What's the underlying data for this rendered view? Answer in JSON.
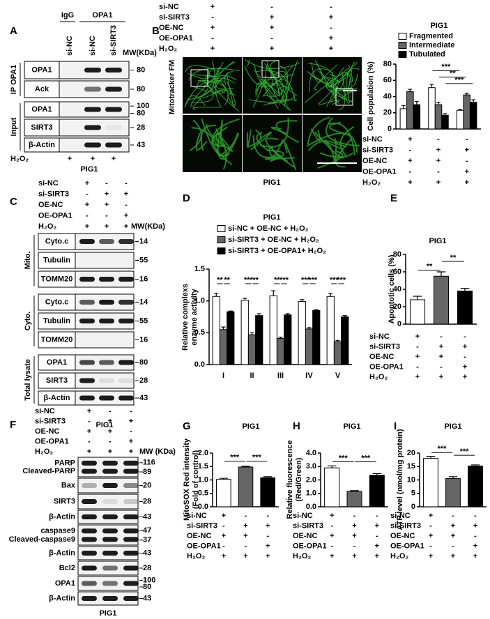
{
  "blots": [
    {
      "letter": "A",
      "headers": [
        "IgG",
        "OPA1"
      ],
      "lanes": [
        "si-NC",
        "si-NC",
        "si-SIRT3"
      ],
      "mw_title": "MW(KDa)",
      "groups": [
        {
          "name": "IP OPA1",
          "rows": [
            {
              "label": "OPA1",
              "mw": [
                80
              ]
            },
            {
              "label": "Ack",
              "mw": [
                80
              ]
            }
          ]
        },
        {
          "name": "Input",
          "rows": [
            {
              "label": "OPA1",
              "mw": [
                100,
                80
              ]
            },
            {
              "label": "SIRT3",
              "mw": [
                28
              ]
            },
            {
              "label": "β-Actin",
              "mw": [
                43
              ]
            }
          ]
        }
      ],
      "conditions": {
        "labels": [
          "H₂O₂"
        ],
        "signs": [
          [
            "+",
            "+",
            "+"
          ]
        ]
      },
      "footer": "PIG1"
    },
    {
      "letter": "C",
      "mw_title": "MW(KDa)",
      "conditions": {
        "labels": [
          "si-NC",
          "si-SIRT3",
          "OE-NC",
          "OE-OPA1",
          "H₂O₂"
        ],
        "signs": [
          [
            "+",
            "-",
            "-"
          ],
          [
            "-",
            "+",
            "+"
          ],
          [
            "+",
            "+",
            "-"
          ],
          [
            "-",
            "-",
            "+"
          ],
          [
            "+",
            "+",
            "+"
          ]
        ]
      },
      "groups": [
        {
          "name": "Mito.",
          "rows": [
            {
              "label": "Cyto.c",
              "mw": [
                14
              ]
            },
            {
              "label": "Tubulin",
              "mw": [
                55
              ]
            },
            {
              "label": "TOMM20",
              "mw": [
                16
              ]
            }
          ]
        },
        {
          "name": "Cyto.",
          "rows": [
            {
              "label": "Cyto.c",
              "mw": [
                14
              ]
            },
            {
              "label": "Tubulin",
              "mw": [
                55
              ]
            },
            {
              "label": "TOMM20",
              "mw": [
                16
              ]
            }
          ]
        },
        {
          "name": "Total lysate",
          "rows": [
            {
              "label": "OPA1",
              "mw": [
                80
              ]
            },
            {
              "label": "SIRT3",
              "mw": [
                28
              ]
            },
            {
              "label": "β-Actin",
              "mw": [
                43
              ]
            }
          ]
        }
      ],
      "footer": "PIG1"
    },
    {
      "letter": "F",
      "mw_title": "MW (KDa)",
      "conditions": {
        "labels": [
          "si-NC",
          "si-SIRT3",
          "OE-NC",
          "OE-OPA1",
          "H₂O₂"
        ],
        "signs": [
          [
            "+",
            "-",
            "-"
          ],
          [
            "-",
            "+",
            "+"
          ],
          [
            "+",
            "+",
            "-"
          ],
          [
            "-",
            "-",
            "+"
          ],
          [
            "+",
            "+",
            "+"
          ]
        ]
      },
      "rows": [
        {
          "label": [
            "PARP",
            "Cleaved-PARP"
          ],
          "mw": [
            116,
            89
          ]
        },
        {
          "label": "Bax",
          "mw": [
            20
          ]
        },
        {
          "label": "SIRT3",
          "mw": [
            28
          ]
        },
        {
          "label": "β-Actin",
          "mw": [
            43
          ]
        },
        {
          "label": [
            "caspase9",
            "Cleaved-caspase9"
          ],
          "mw": [
            47,
            37
          ]
        },
        {
          "label": "β-Actin",
          "mw": [
            43
          ]
        },
        {
          "label": "Bcl2",
          "mw": [
            28
          ]
        },
        {
          "label": "OPA1",
          "mw": [
            100,
            80
          ]
        },
        {
          "label": "β-Actin",
          "mw": [
            43
          ]
        }
      ],
      "footer": "PIG1"
    }
  ],
  "microscopy": {
    "letter": "B",
    "y_label": "Mitotracker FM",
    "footer": "PIG1",
    "conditions": {
      "labels": [
        "si-NC",
        "si-SIRT3",
        "OE-NC",
        "OE-OPA1",
        "H₂O₂"
      ],
      "signs": [
        [
          "+",
          "-",
          "-"
        ],
        [
          "-",
          "+",
          "+"
        ],
        [
          "+",
          "+",
          "-"
        ],
        [
          "-",
          "-",
          "+"
        ],
        [
          "+",
          "+",
          "+"
        ]
      ]
    }
  },
  "chart_data": [
    {
      "type": "bar",
      "title": "PIG1",
      "y_label": [
        "Cell population (%)"
      ],
      "ylim": [
        0,
        80
      ],
      "yticks": [
        0,
        20,
        40,
        60,
        80
      ],
      "series": [
        {
          "name": "Fragmented",
          "color": "#ffffff",
          "values": [
            25,
            51,
            23
          ],
          "errors": [
            4,
            4,
            1
          ]
        },
        {
          "name": "Intermediate",
          "color": "#666666",
          "values": [
            46,
            30,
            42
          ],
          "errors": [
            3,
            3,
            2
          ]
        },
        {
          "name": "Tubulated",
          "color": "#000000",
          "values": [
            30,
            17,
            33
          ],
          "errors": [
            4,
            2,
            3
          ]
        }
      ],
      "significance": [
        "***",
        "**",
        "***"
      ],
      "conditions": {
        "labels": [
          "si-NC",
          "si-SIRT3",
          "OE-NC",
          "OE-OPA1",
          "H₂O₂"
        ],
        "signs": [
          [
            "+",
            "-",
            "-"
          ],
          [
            "-",
            "+",
            "+"
          ],
          [
            "+",
            "+",
            "-"
          ],
          [
            "-",
            "-",
            "+"
          ],
          [
            "+",
            "+",
            "+"
          ]
        ]
      }
    },
    {
      "type": "bar",
      "letter": "D",
      "title": "PIG1",
      "y_label": [
        "Relative complexs",
        "enzyme activity"
      ],
      "ylim": [
        0,
        1.5
      ],
      "yticks": [
        {
          "value": 0,
          "label": "0.0"
        },
        0.5,
        {
          "value": 1,
          "label": "1.0"
        },
        1.5
      ],
      "categories": [
        "I",
        "II",
        "III",
        "IV",
        "V"
      ],
      "series": [
        {
          "name": "si-NC + OE-NC + H₂O₂",
          "color": "#ffffff",
          "values": [
            1.07,
            1.01,
            1.08,
            0.99,
            1.07
          ],
          "errors": [
            0.05,
            0.03,
            0.08,
            0.03,
            0.05
          ]
        },
        {
          "name": "si-SIRT3 + OE-NC + H₂O₂",
          "color": "#666666",
          "values": [
            0.55,
            0.47,
            0.41,
            0.56,
            0.36
          ],
          "errors": [
            0.04,
            0.03,
            0.02,
            0.02,
            0.02
          ]
        },
        {
          "name": "si-SIRT3 + OE-OPA1+ H₂O₂",
          "color": "#000000",
          "values": [
            0.83,
            0.77,
            0.78,
            0.85,
            0.75
          ],
          "errors": [
            0.01,
            0.03,
            0.02,
            0.01,
            0.02
          ]
        }
      ],
      "significance": [
        [
          "**",
          "**"
        ],
        [
          "***",
          "**"
        ],
        [
          "**",
          "***"
        ],
        [
          "***",
          "***"
        ],
        [
          "***",
          "***"
        ]
      ]
    },
    {
      "type": "bar",
      "letter": "E",
      "title": "PIG1",
      "y_label": [
        "Apoptotic cells (%)"
      ],
      "ylim": [
        0,
        80
      ],
      "yticks": [
        0,
        20,
        40,
        60,
        80
      ],
      "values": [
        28,
        55,
        38
      ],
      "errors": [
        4,
        5,
        3
      ],
      "colors": [
        "#ffffff",
        "#666666",
        "#000000"
      ],
      "significance": [
        "**",
        "**"
      ],
      "conditions": {
        "labels": [
          "si-NC",
          "si-SIRT3",
          "OE-NC",
          "OE-OPA1",
          "H₂O₂"
        ],
        "signs": [
          [
            "+",
            "-",
            "-"
          ],
          [
            "-",
            "+",
            "+"
          ],
          [
            "+",
            "+",
            "-"
          ],
          [
            "-",
            "-",
            "+"
          ],
          [
            "+",
            "+",
            "+"
          ]
        ]
      }
    },
    {
      "type": "bar",
      "letter": "G",
      "title": "PIG1",
      "y_label": [
        "MitoSOX Red intensity",
        "(Fold of control)"
      ],
      "ylim": [
        0,
        2
      ],
      "yticks": [
        {
          "value": 0,
          "label": "0.0"
        },
        0.5,
        {
          "value": 1,
          "label": "1.0"
        },
        1.5,
        {
          "value": 2,
          "label": "2.0"
        }
      ],
      "values": [
        1.02,
        1.48,
        1.08
      ],
      "errors": [
        0.04,
        0.03,
        0.04
      ],
      "colors": [
        "#ffffff",
        "#666666",
        "#000000"
      ],
      "significance": [
        "***",
        "***"
      ],
      "conditions": {
        "labels": [
          "si-NC",
          "si-SIRT3",
          "OE-NC",
          "OE-OPA1",
          "H₂O₂"
        ],
        "signs": [
          [
            "+",
            "-",
            "-"
          ],
          [
            "-",
            "+",
            "+"
          ],
          [
            "+",
            "+",
            "-"
          ],
          [
            "-",
            "-",
            "+"
          ],
          [
            "+",
            "+",
            "+"
          ]
        ]
      }
    },
    {
      "type": "bar",
      "letter": "H",
      "title": "PIG1",
      "y_label": [
        "Relative fluorescence",
        "(Red/Green)"
      ],
      "ylim": [
        0,
        4
      ],
      "yticks": [
        {
          "value": 0,
          "label": "0.0"
        },
        {
          "value": 1,
          "label": "1.0"
        },
        {
          "value": 2,
          "label": "2.0"
        },
        {
          "value": 3,
          "label": "3.0"
        },
        {
          "value": 4,
          "label": "4.0"
        }
      ],
      "values": [
        2.9,
        1.15,
        2.35
      ],
      "errors": [
        0.15,
        0.05,
        0.12
      ],
      "colors": [
        "#ffffff",
        "#666666",
        "#000000"
      ],
      "significance": [
        "***",
        "***"
      ],
      "conditions": {
        "labels": [
          "si-NC",
          "si-SIRT3",
          "OE-NC",
          "OE-OPA1",
          "H₂O₂"
        ],
        "signs": [
          [
            "+",
            "-",
            "-"
          ],
          [
            "-",
            "+",
            "+"
          ],
          [
            "+",
            "+",
            "-"
          ],
          [
            "-",
            "-",
            "+"
          ],
          [
            "+",
            "+",
            "+"
          ]
        ]
      }
    },
    {
      "type": "bar",
      "letter": "I",
      "title": "PIG1",
      "y_label": [
        "ATP level (nmol/mg protein)"
      ],
      "ylim": [
        0,
        20
      ],
      "yticks": [
        0,
        5,
        10,
        15,
        20
      ],
      "values": [
        18,
        10.5,
        15.2
      ],
      "errors": [
        0.8,
        0.7,
        0.4
      ],
      "colors": [
        "#ffffff",
        "#666666",
        "#000000"
      ],
      "significance": [
        "***",
        "***"
      ],
      "conditions": {
        "labels": [
          "si-NC",
          "si-SIRT3",
          "OE-NC",
          "OE-OPA1",
          "H₂O₂"
        ],
        "signs": [
          [
            "+",
            "-",
            "-"
          ],
          [
            "-",
            "+",
            "+"
          ],
          [
            "+",
            "+",
            "-"
          ],
          [
            "-",
            "-",
            "+"
          ],
          [
            "+",
            "+",
            "+"
          ]
        ]
      }
    }
  ]
}
